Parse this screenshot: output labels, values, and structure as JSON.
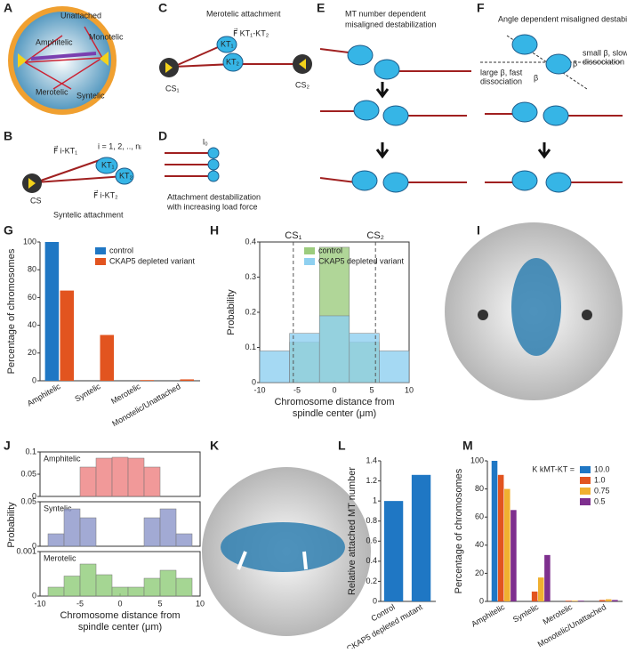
{
  "panel_labels": [
    "A",
    "B",
    "C",
    "D",
    "E",
    "F",
    "G",
    "H",
    "I",
    "J",
    "K",
    "L",
    "M"
  ],
  "diagrams": {
    "A": {
      "labels": [
        "Unattached",
        "Monotelic",
        "Amphitelic",
        "Merotelic",
        "Syntelic"
      ]
    },
    "B": {
      "labels": [
        "F⃗ i-KT₁",
        "i = 1, 2, .., nᵢ",
        "KT₁",
        "KT₂",
        "CS",
        "F⃗ i-KT₂",
        "Syntelic attachment"
      ]
    },
    "C": {
      "labels": [
        "Merotelic attachment",
        "F⃗ KT₁-KT₂",
        "KT₁",
        "KT₂",
        "CS₁",
        "CS₂"
      ]
    },
    "D": {
      "labels": [
        "l₀",
        "Attachment destabilization",
        "with increasing load force"
      ]
    },
    "E": {
      "labels": [
        "MT number dependent",
        "misaligned destabilization"
      ]
    },
    "F": {
      "labels": [
        "Angle dependent misaligned destabilization",
        "large β, fast",
        "dissociation",
        "small β, slow",
        "dissociation",
        "β",
        "β"
      ]
    }
  },
  "chart_data": [
    {
      "type": "bar",
      "ylabel": "Percentage of chromosomes",
      "categories": [
        "Amphitelic",
        "Syntelic",
        "Merotelic",
        "Monotelic/Unattached"
      ],
      "series": [
        {
          "name": "control",
          "color": "#1f77c4",
          "values": [
            100,
            0,
            0,
            0
          ]
        },
        {
          "name": "CKAP5 depleted variant",
          "color": "#e2541f",
          "values": [
            65,
            33,
            0.5,
            1
          ]
        }
      ],
      "ylim": [
        0,
        100
      ],
      "yticks": [
        0,
        20,
        40,
        60,
        80,
        100
      ],
      "legend": "upper right"
    },
    {
      "type": "histogram",
      "ylabel": "Probability",
      "xlabel": [
        "Chromosome distance from",
        "spindle center (μm)"
      ],
      "series": [
        {
          "name": "control",
          "color": "#9ccc7e",
          "bins": [
            -6,
            -2,
            2,
            6
          ],
          "values": [
            0.115,
            0.385,
            0.115
          ]
        },
        {
          "name": "CKAP5 depleted variant",
          "color": "#8fd0f0",
          "bins": [
            -10,
            -6,
            -2,
            2,
            6,
            10
          ],
          "values": [
            0.09,
            0.14,
            0.19,
            0.14,
            0.09
          ]
        }
      ],
      "vlines": [
        {
          "x": -5.5,
          "label": "CS₁"
        },
        {
          "x": 5.5,
          "label": "CS₂"
        }
      ],
      "xlim": [
        -10,
        10
      ],
      "xticks": [
        -10,
        -5,
        0,
        5,
        10
      ],
      "ylim": [
        0,
        0.4
      ],
      "yticks": [
        0,
        0.1,
        0.2,
        0.3,
        0.4
      ],
      "legend": "upper right"
    },
    {
      "type": "histogram",
      "title": "Amphitelic",
      "ylabel": "Probability",
      "series": [
        {
          "color": "#ee7f7f",
          "bins": [
            -5,
            -3,
            -1,
            1,
            3,
            5
          ],
          "values": [
            0.066,
            0.086,
            0.088,
            0.086,
            0.066
          ]
        }
      ],
      "xlim": [
        -10,
        10
      ],
      "ylim": [
        0,
        0.1
      ],
      "yticks": [
        0,
        0.05,
        0.1
      ]
    },
    {
      "type": "histogram",
      "title": "Syntelic",
      "series": [
        {
          "color": "#8b95c9",
          "bins": [
            -9,
            -7,
            -5,
            -3,
            3,
            5,
            7,
            9
          ],
          "values": [
            0.014,
            0.042,
            0.032,
            0,
            0.032,
            0.042,
            0.014
          ]
        }
      ],
      "xlim": [
        -10,
        10
      ],
      "ylim": [
        0,
        0.05
      ],
      "yticks": [
        0,
        0.05
      ]
    },
    {
      "type": "histogram",
      "title": "Merotelic",
      "xlabel": [
        "Chromosome distance from",
        "spindle center (μm)"
      ],
      "series": [
        {
          "color": "#8fcc78",
          "bins": [
            -9,
            -7,
            -5,
            -3,
            -1,
            1,
            3,
            5,
            7,
            9
          ],
          "values": [
            0.0002,
            0.00045,
            0.00072,
            0.00048,
            0.0002,
            0.0002,
            0.0004,
            0.00058,
            0.0004
          ]
        }
      ],
      "xlim": [
        -10,
        10
      ],
      "xticks": [
        -10,
        -5,
        0,
        5,
        10
      ],
      "ylim": [
        0,
        0.001
      ],
      "yticks": [
        0,
        0.001
      ]
    },
    {
      "type": "bar",
      "ylabel": "Relative attached MT number",
      "categories": [
        "Control",
        "CKAP5 depleted mutant"
      ],
      "series": [
        {
          "color": "#1f77c4",
          "values": [
            1.0,
            1.26
          ]
        }
      ],
      "ylim": [
        0,
        1.4
      ],
      "yticks": [
        0,
        0.2,
        0.4,
        0.6,
        0.8,
        1,
        1.2,
        1.4
      ]
    },
    {
      "type": "bar",
      "ylabel": "Percentage of chromosomes",
      "legend_title": "K kMT-KT =",
      "categories": [
        "Amphitelic",
        "Syntelic",
        "Merotelic",
        "Monotelic/Unattached"
      ],
      "series": [
        {
          "name": "10.0",
          "color": "#1f77c4",
          "values": [
            100,
            0,
            0,
            0
          ]
        },
        {
          "name": "1.0",
          "color": "#e2541f",
          "values": [
            90,
            7,
            0.5,
            1
          ]
        },
        {
          "name": "0.75",
          "color": "#f0b030",
          "values": [
            80,
            17,
            0.5,
            1.5
          ]
        },
        {
          "name": "0.5",
          "color": "#7e2f8e",
          "values": [
            65,
            33,
            0.5,
            1
          ]
        }
      ],
      "ylim": [
        0,
        100
      ],
      "yticks": [
        0,
        20,
        40,
        60,
        80,
        100
      ],
      "legend": "upper right"
    }
  ]
}
